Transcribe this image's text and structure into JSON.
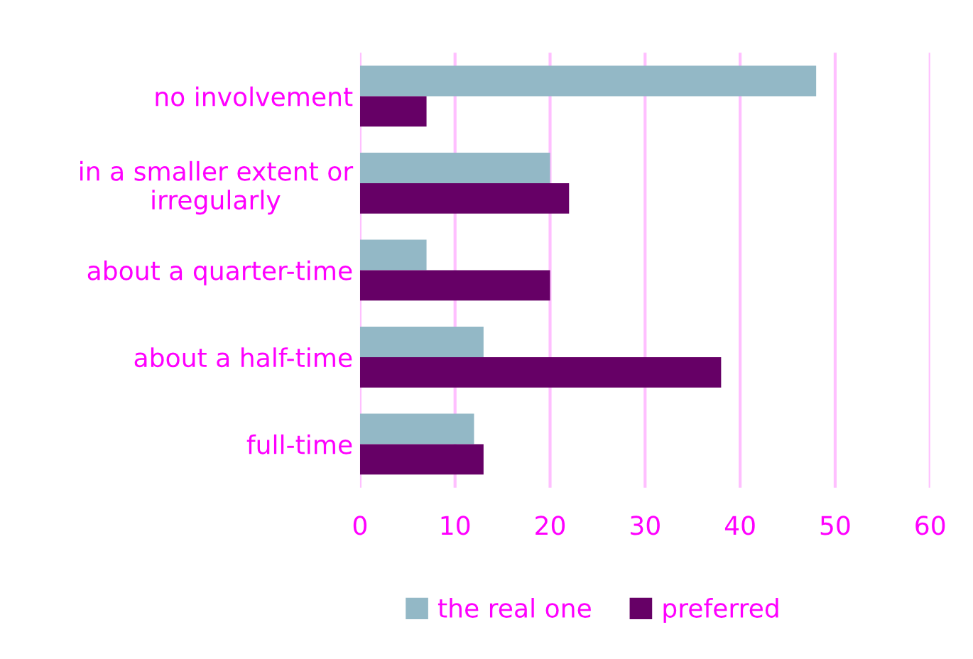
{
  "chart_data": {
    "type": "bar",
    "orientation": "horizontal",
    "categories": [
      "no involvement",
      "in a smaller extent or\nirregularly",
      "about a quarter-time",
      "about a half-time",
      "full-time"
    ],
    "series": [
      {
        "name": "the real one",
        "color": "#93b8c6",
        "values": [
          48,
          20,
          7,
          13,
          12
        ]
      },
      {
        "name": "preferred",
        "color": "#660066",
        "values": [
          7,
          22,
          20,
          38,
          13
        ]
      }
    ],
    "xlim": [
      0,
      60
    ],
    "xticks": [
      0,
      10,
      20,
      30,
      40,
      50,
      60
    ],
    "grid": "x",
    "legend": "bottom"
  }
}
